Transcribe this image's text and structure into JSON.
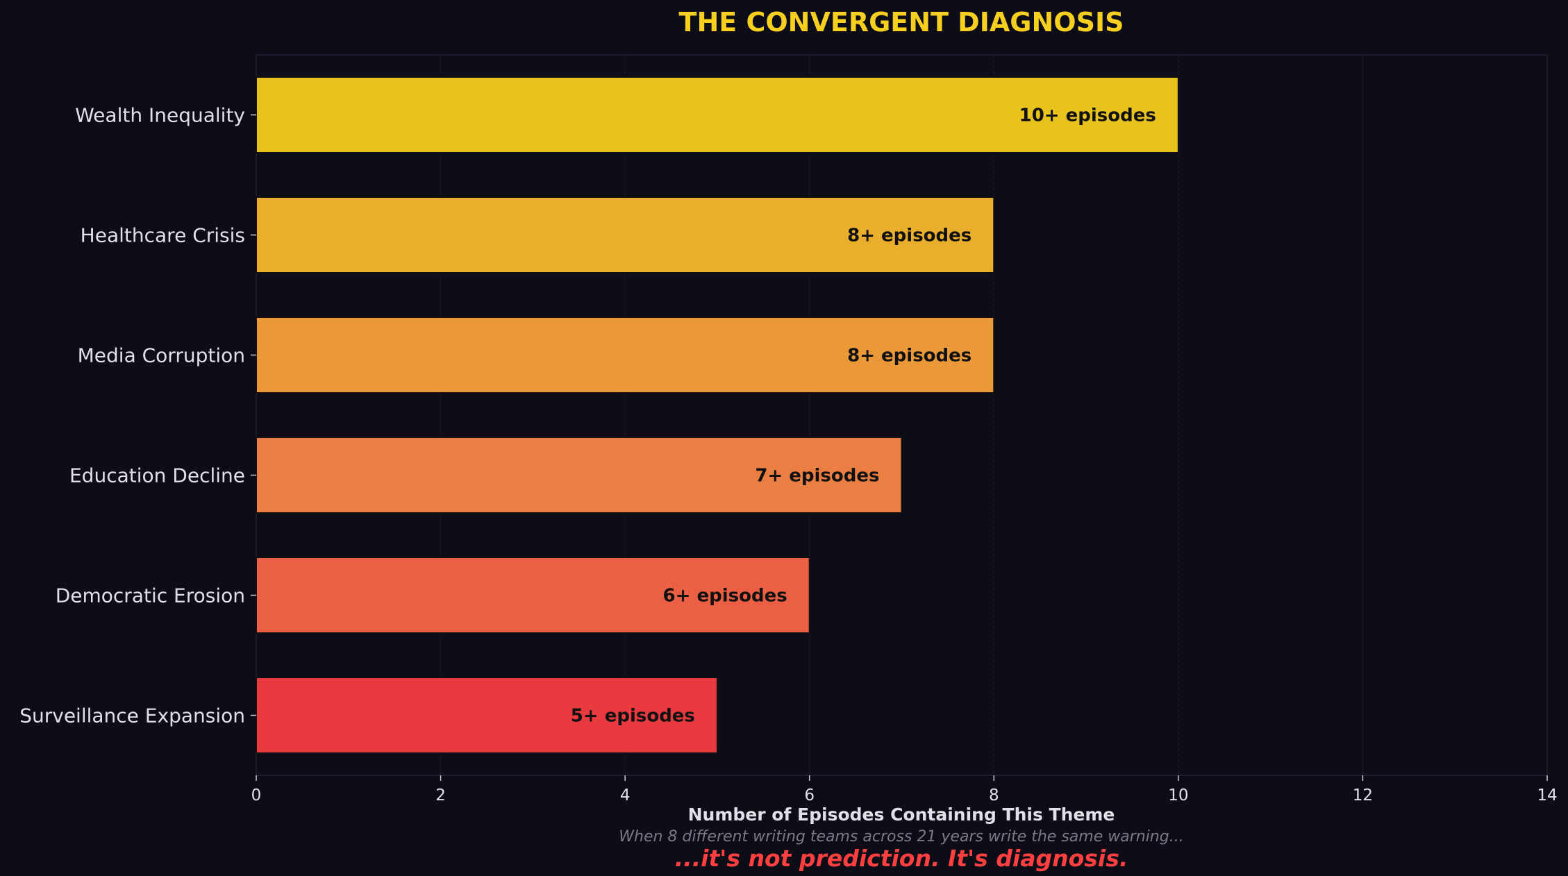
{
  "chart_data": {
    "type": "bar",
    "orientation": "horizontal",
    "title": "THE CONVERGENT DIAGNOSIS",
    "xlabel": "Number of Episodes Containing This Theme",
    "ylabel": "",
    "subtitle": "When 8 different writing teams across 21 years write the same warning...",
    "tagline": "...it's not prediction. It's diagnosis.",
    "categories": [
      "Wealth Inequality",
      "Healthcare Crisis",
      "Media Corruption",
      "Education Decline",
      "Democratic Erosion",
      "Surveillance Expansion"
    ],
    "values": [
      10,
      8,
      8,
      7,
      6,
      5
    ],
    "data_labels": [
      "10+ episodes",
      "8+ episodes",
      "8+ episodes",
      "7+ episodes",
      "6+ episodes",
      "5+ episodes"
    ],
    "bar_colors": [
      "#e8c31e",
      "#e8ae2c",
      "#ea9838",
      "#eb7e42",
      "#eb6044",
      "#e93b3f"
    ],
    "xlim": [
      0,
      14
    ],
    "xticks": [
      "0",
      "2",
      "4",
      "6",
      "8",
      "10",
      "12",
      "14"
    ],
    "grid": "x",
    "legend": "none",
    "colors": {
      "background": "#0d0d18",
      "title": "#f7cf1e",
      "text": "#e0e0e6",
      "subtitle": "#7a7a88",
      "tagline": "#ff4040",
      "bar_label": "#111111"
    }
  }
}
